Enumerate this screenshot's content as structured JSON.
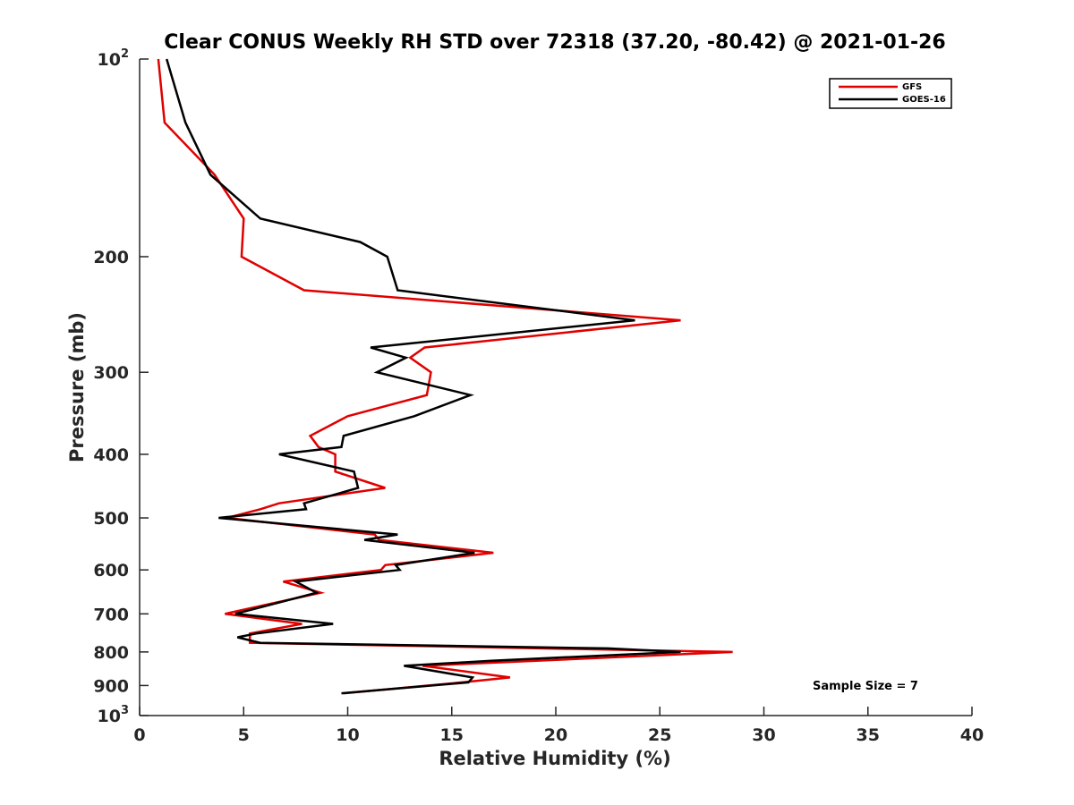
{
  "chart_data": {
    "type": "line",
    "title": "Clear CONUS Weekly RH STD over 72318 (37.20, -80.42) @ 2021-01-26",
    "xlabel": "Relative Humidity (%)",
    "ylabel": "Pressure (mb)",
    "xlim": [
      0,
      40
    ],
    "ylim": [
      100,
      1000
    ],
    "yscale": "log",
    "y_reversed": true,
    "grid": false,
    "legend_position": "top-right",
    "x_ticks": [
      "0",
      "5",
      "10",
      "15",
      "20",
      "25",
      "30",
      "35",
      "40"
    ],
    "y_ticks": [
      {
        "value": 100,
        "base": "10",
        "exp": "2"
      },
      {
        "value": 200,
        "base": "200",
        "exp": ""
      },
      {
        "value": 300,
        "base": "300",
        "exp": ""
      },
      {
        "value": 400,
        "base": "400",
        "exp": ""
      },
      {
        "value": 500,
        "base": "500",
        "exp": ""
      },
      {
        "value": 600,
        "base": "600",
        "exp": ""
      },
      {
        "value": 700,
        "base": "700",
        "exp": ""
      },
      {
        "value": 800,
        "base": "800",
        "exp": ""
      },
      {
        "value": 900,
        "base": "900",
        "exp": ""
      },
      {
        "value": 1000,
        "base": "10",
        "exp": "3"
      }
    ],
    "annotation": "Sample Size = 7",
    "series": [
      {
        "name": "GFS",
        "color": "#e00000",
        "points": [
          [
            0.9,
            100
          ],
          [
            1.2,
            125
          ],
          [
            3.6,
            150
          ],
          [
            5.0,
            175
          ],
          [
            4.9,
            200
          ],
          [
            7.9,
            225
          ],
          [
            26.0,
            250
          ],
          [
            13.7,
            275
          ],
          [
            13.0,
            285
          ],
          [
            14.0,
            300
          ],
          [
            13.8,
            325
          ],
          [
            10.0,
            350
          ],
          [
            8.2,
            375
          ],
          [
            8.6,
            390
          ],
          [
            9.4,
            400
          ],
          [
            9.4,
            425
          ],
          [
            11.8,
            450
          ],
          [
            6.7,
            475
          ],
          [
            5.8,
            485
          ],
          [
            4.2,
            500
          ],
          [
            11.3,
            530
          ],
          [
            11.5,
            540
          ],
          [
            17.0,
            565
          ],
          [
            11.8,
            590
          ],
          [
            11.6,
            600
          ],
          [
            6.9,
            625
          ],
          [
            8.7,
            650
          ],
          [
            4.1,
            700
          ],
          [
            7.8,
            725
          ],
          [
            5.3,
            750
          ],
          [
            5.3,
            775
          ],
          [
            28.5,
            800
          ],
          [
            13.6,
            840
          ],
          [
            17.8,
            875
          ],
          [
            15.5,
            890
          ],
          [
            9.8,
            925
          ]
        ]
      },
      {
        "name": "GOES-16",
        "color": "#000000",
        "points": [
          [
            1.3,
            100
          ],
          [
            2.2,
            125
          ],
          [
            3.4,
            150
          ],
          [
            5.8,
            175
          ],
          [
            10.6,
            190
          ],
          [
            11.9,
            200
          ],
          [
            12.4,
            225
          ],
          [
            23.8,
            250
          ],
          [
            11.1,
            275
          ],
          [
            12.8,
            285
          ],
          [
            11.4,
            300
          ],
          [
            15.9,
            325
          ],
          [
            13.2,
            350
          ],
          [
            9.8,
            375
          ],
          [
            9.7,
            390
          ],
          [
            6.7,
            400
          ],
          [
            10.3,
            425
          ],
          [
            10.5,
            450
          ],
          [
            7.9,
            475
          ],
          [
            8.0,
            485
          ],
          [
            3.8,
            500
          ],
          [
            12.4,
            530
          ],
          [
            10.8,
            540
          ],
          [
            16.1,
            565
          ],
          [
            12.3,
            590
          ],
          [
            12.5,
            600
          ],
          [
            7.5,
            625
          ],
          [
            8.5,
            650
          ],
          [
            4.6,
            700
          ],
          [
            9.3,
            725
          ],
          [
            5.6,
            750
          ],
          [
            4.7,
            760
          ],
          [
            5.8,
            775
          ],
          [
            22.5,
            790
          ],
          [
            26.0,
            800
          ],
          [
            16.9,
            825
          ],
          [
            12.7,
            840
          ],
          [
            16.0,
            875
          ],
          [
            15.8,
            890
          ],
          [
            9.7,
            925
          ]
        ]
      }
    ]
  }
}
